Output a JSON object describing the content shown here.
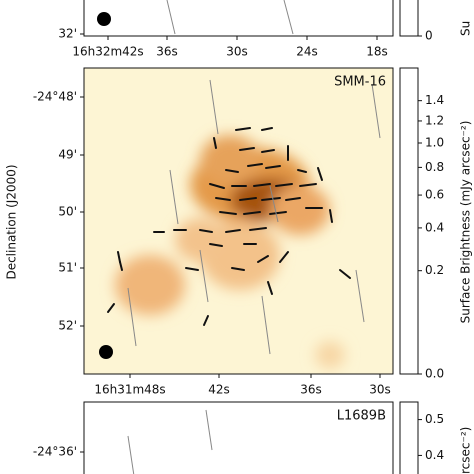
{
  "y_label": "Declination (J2000)",
  "panels": [
    {
      "x_ticks": [
        "16h32m42s",
        "36s",
        "30s",
        "24s",
        "18s"
      ],
      "y_ticks": [
        "32'"
      ],
      "colorbar": {
        "ticks": [
          0
        ],
        "label": "Su"
      }
    },
    {
      "label": "SMM-16",
      "x_ticks": [
        "16h31m48s",
        "42s",
        "36s",
        "30s"
      ],
      "y_ticks": [
        "-24°48'",
        "49'",
        "50'",
        "51'",
        "52'"
      ],
      "colorbar": {
        "ticks": [
          {
            "value": 0,
            "label": "0.0"
          },
          0.2,
          0.4,
          0.6,
          0.8,
          {
            "value": 1,
            "label": "1.0"
          },
          1.2,
          1.4
        ],
        "label": "Surface Brightness (mJy arcsec⁻²)"
      }
    },
    {
      "label": "L1689B",
      "y_ticks": [
        "-24°36'"
      ],
      "colorbar": {
        "ticks": [
          0.4,
          0.5
        ],
        "label": "rcsec⁻²)"
      }
    }
  ]
}
